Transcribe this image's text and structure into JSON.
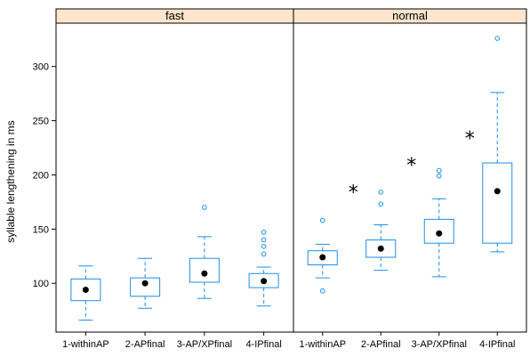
{
  "chart_data": {
    "type": "boxplot",
    "ylabel": "syllable lengthening in ms",
    "yticks": [
      100,
      150,
      200,
      250,
      300
    ],
    "ylim": [
      55,
      340
    ],
    "categories": [
      "1-withinAP",
      "2-APfinal",
      "3-AP/XPfinal",
      "4-IPfinal"
    ],
    "colors": {
      "box": "#1f8ee6",
      "strip_bg": "#ffe5cc",
      "median_dot": "#000000"
    },
    "panels": [
      {
        "name": "fast",
        "boxes": [
          {
            "category": "1-withinAP",
            "whisker_low": 66,
            "q1": 84,
            "median": 94,
            "q3": 104,
            "whisker_high": 116,
            "outliers": [],
            "marker": ""
          },
          {
            "category": "2-APfinal",
            "whisker_low": 77,
            "q1": 88,
            "median": 100,
            "q3": 105,
            "whisker_high": 123,
            "outliers": [],
            "marker": ""
          },
          {
            "category": "3-AP/XPfinal",
            "whisker_low": 86,
            "q1": 101,
            "median": 109,
            "q3": 123,
            "whisker_high": 143,
            "outliers": [
              170
            ],
            "marker": ""
          },
          {
            "category": "4-IPfinal",
            "whisker_low": 79,
            "q1": 96,
            "median": 102,
            "q3": 109,
            "whisker_high": 115,
            "outliers": [
              127,
              134,
              140,
              147
            ],
            "marker": ""
          }
        ]
      },
      {
        "name": "normal",
        "boxes": [
          {
            "category": "1-withinAP",
            "whisker_low": 105,
            "q1": 117,
            "median": 124,
            "q3": 130,
            "whisker_high": 136,
            "outliers": [
              93,
              158
            ],
            "marker": ""
          },
          {
            "category": "2-APfinal",
            "whisker_low": 112,
            "q1": 124,
            "median": 132,
            "q3": 140,
            "whisker_high": 154,
            "outliers": [
              173,
              184
            ],
            "marker": "*"
          },
          {
            "category": "3-AP/XPfinal",
            "whisker_low": 106,
            "q1": 137,
            "median": 146,
            "q3": 159,
            "whisker_high": 178,
            "outliers": [
              199,
              204
            ],
            "marker": "*"
          },
          {
            "category": "4-IPfinal",
            "whisker_low": 129,
            "q1": 137,
            "median": 185,
            "q3": 211,
            "whisker_high": 276,
            "outliers": [
              326
            ],
            "marker": "*"
          }
        ]
      }
    ]
  }
}
